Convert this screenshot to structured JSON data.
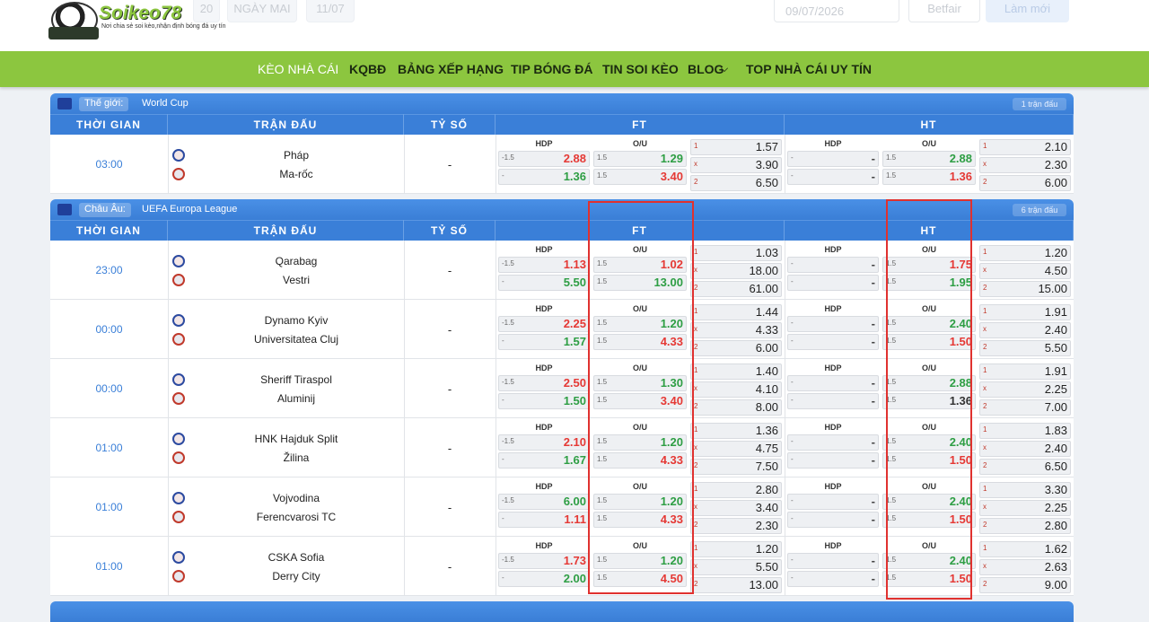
{
  "header": {
    "logo": "Soikeo78",
    "tagline": "Nơi chia sẻ soi kèo,nhận định bóng đá uy tín",
    "controls": {
      "today": "20",
      "tomorrow": "NGÀY MAI",
      "date_tab": "11/07",
      "date": "09/07/2026",
      "bookmaker": "Betfair",
      "refresh": "Làm mới"
    }
  },
  "nav": [
    "KÈO NHÀ CÁI",
    "KQBĐ",
    "BẢNG XẾP HẠNG",
    "TIP BÓNG ĐÁ",
    "TIN SOI KÈO",
    "BLOG",
    "TOP NHÀ CÁI UY TÍN"
  ],
  "columns": {
    "time": "THỜI GIAN",
    "match": "TRẬN ĐẤU",
    "score": "TỶ SỐ",
    "ft": "FT",
    "ht": "HT",
    "hdp": "HDP",
    "ou": "O/U"
  },
  "leagues": [
    {
      "region": "Thế giới:",
      "name": "World Cup",
      "count": "1 trận đấu",
      "matches": [
        {
          "time": "03:00",
          "home": "Pháp",
          "away": "Ma-rốc",
          "score": "-",
          "ft": {
            "hdp": {
              "lines": [
                "-1.5",
                "-"
              ],
              "odds": [
                "2.88",
                "1.36"
              ],
              "colors": [
                "#e53935",
                "#2e9e44"
              ]
            },
            "ou": {
              "lines": [
                "1.5",
                "1.5"
              ],
              "odds": [
                "1.29",
                "3.40"
              ],
              "colors": [
                "#2e9e44",
                "#e53935"
              ]
            },
            "x12": {
              "labels": [
                "1",
                "x",
                "2"
              ],
              "odds": [
                "1.57",
                "3.90",
                "6.50"
              ]
            }
          },
          "ht": {
            "hdp": {
              "lines": [
                "-",
                "-"
              ],
              "odds": [
                "-",
                "-"
              ],
              "colors": [
                "#444",
                "#444"
              ]
            },
            "ou": {
              "lines": [
                "1.5",
                "1.5"
              ],
              "odds": [
                "2.88",
                "1.36"
              ],
              "colors": [
                "#2e9e44",
                "#e53935"
              ]
            },
            "x12": {
              "labels": [
                "1",
                "x",
                "2"
              ],
              "odds": [
                "2.10",
                "2.30",
                "6.00"
              ]
            }
          }
        }
      ]
    },
    {
      "region": "Châu Âu:",
      "name": "UEFA Europa League",
      "count": "6 trận đấu",
      "matches": [
        {
          "time": "23:00",
          "home": "Qarabag",
          "away": "Vestri",
          "score": "-",
          "ft": {
            "hdp": {
              "lines": [
                "-1.5",
                "-"
              ],
              "odds": [
                "1.13",
                "5.50"
              ],
              "colors": [
                "#e53935",
                "#2e9e44"
              ]
            },
            "ou": {
              "lines": [
                "1.5",
                "1.5"
              ],
              "odds": [
                "1.02",
                "13.00"
              ],
              "colors": [
                "#e53935",
                "#2e9e44"
              ]
            },
            "x12": {
              "labels": [
                "1",
                "x",
                "2"
              ],
              "odds": [
                "1.03",
                "18.00",
                "61.00"
              ]
            }
          },
          "ht": {
            "hdp": {
              "lines": [
                "-",
                "-"
              ],
              "odds": [
                "-",
                "-"
              ],
              "colors": [
                "#444",
                "#444"
              ]
            },
            "ou": {
              "lines": [
                "1.5",
                "1.5"
              ],
              "odds": [
                "1.75",
                "1.95"
              ],
              "colors": [
                "#e53935",
                "#2e9e44"
              ]
            },
            "x12": {
              "labels": [
                "1",
                "x",
                "2"
              ],
              "odds": [
                "1.20",
                "4.50",
                "15.00"
              ]
            }
          }
        },
        {
          "time": "00:00",
          "home": "Dynamo Kyiv",
          "away": "Universitatea Cluj",
          "score": "-",
          "ft": {
            "hdp": {
              "lines": [
                "-1.5",
                "-"
              ],
              "odds": [
                "2.25",
                "1.57"
              ],
              "colors": [
                "#e53935",
                "#2e9e44"
              ]
            },
            "ou": {
              "lines": [
                "1.5",
                "1.5"
              ],
              "odds": [
                "1.20",
                "4.33"
              ],
              "colors": [
                "#2e9e44",
                "#e53935"
              ]
            },
            "x12": {
              "labels": [
                "1",
                "x",
                "2"
              ],
              "odds": [
                "1.44",
                "4.33",
                "6.00"
              ]
            }
          },
          "ht": {
            "hdp": {
              "lines": [
                "-",
                "-"
              ],
              "odds": [
                "-",
                "-"
              ],
              "colors": [
                "#444",
                "#444"
              ]
            },
            "ou": {
              "lines": [
                "1.5",
                "1.5"
              ],
              "odds": [
                "2.40",
                "1.50"
              ],
              "colors": [
                "#2e9e44",
                "#e53935"
              ]
            },
            "x12": {
              "labels": [
                "1",
                "x",
                "2"
              ],
              "odds": [
                "1.91",
                "2.40",
                "5.50"
              ]
            }
          }
        },
        {
          "time": "00:00",
          "home": "Sheriff Tiraspol",
          "away": "Aluminij",
          "score": "-",
          "ft": {
            "hdp": {
              "lines": [
                "-1.5",
                "-"
              ],
              "odds": [
                "2.50",
                "1.50"
              ],
              "colors": [
                "#e53935",
                "#2e9e44"
              ]
            },
            "ou": {
              "lines": [
                "1.5",
                "1.5"
              ],
              "odds": [
                "1.30",
                "3.40"
              ],
              "colors": [
                "#2e9e44",
                "#e53935"
              ]
            },
            "x12": {
              "labels": [
                "1",
                "x",
                "2"
              ],
              "odds": [
                "1.40",
                "4.10",
                "8.00"
              ]
            }
          },
          "ht": {
            "hdp": {
              "lines": [
                "-",
                "-"
              ],
              "odds": [
                "-",
                "-"
              ],
              "colors": [
                "#444",
                "#444"
              ]
            },
            "ou": {
              "lines": [
                "1.5",
                "1.5"
              ],
              "odds": [
                "2.88",
                "1.36"
              ],
              "colors": [
                "#2e9e44",
                "#333"
              ]
            },
            "x12": {
              "labels": [
                "1",
                "x",
                "2"
              ],
              "odds": [
                "1.91",
                "2.25",
                "7.00"
              ]
            }
          }
        },
        {
          "time": "01:00",
          "home": "HNK Hajduk Split",
          "away": "Žilina",
          "score": "-",
          "ft": {
            "hdp": {
              "lines": [
                "-1.5",
                "-"
              ],
              "odds": [
                "2.10",
                "1.67"
              ],
              "colors": [
                "#e53935",
                "#2e9e44"
              ]
            },
            "ou": {
              "lines": [
                "1.5",
                "1.5"
              ],
              "odds": [
                "1.20",
                "4.33"
              ],
              "colors": [
                "#2e9e44",
                "#e53935"
              ]
            },
            "x12": {
              "labels": [
                "1",
                "x",
                "2"
              ],
              "odds": [
                "1.36",
                "4.75",
                "7.50"
              ]
            }
          },
          "ht": {
            "hdp": {
              "lines": [
                "-",
                "-"
              ],
              "odds": [
                "-",
                "-"
              ],
              "colors": [
                "#444",
                "#444"
              ]
            },
            "ou": {
              "lines": [
                "1.5",
                "1.5"
              ],
              "odds": [
                "2.40",
                "1.50"
              ],
              "colors": [
                "#2e9e44",
                "#e53935"
              ]
            },
            "x12": {
              "labels": [
                "1",
                "x",
                "2"
              ],
              "odds": [
                "1.83",
                "2.40",
                "6.50"
              ]
            }
          }
        },
        {
          "time": "01:00",
          "home": "Vojvodina",
          "away": "Ferencvarosi TC",
          "score": "-",
          "ft": {
            "hdp": {
              "lines": [
                "-1.5",
                "-"
              ],
              "odds": [
                "6.00",
                "1.11"
              ],
              "colors": [
                "#2e9e44",
                "#e53935"
              ]
            },
            "ou": {
              "lines": [
                "1.5",
                "1.5"
              ],
              "odds": [
                "1.20",
                "4.33"
              ],
              "colors": [
                "#2e9e44",
                "#e53935"
              ]
            },
            "x12": {
              "labels": [
                "1",
                "x",
                "2"
              ],
              "odds": [
                "2.80",
                "3.40",
                "2.30"
              ]
            }
          },
          "ht": {
            "hdp": {
              "lines": [
                "-",
                "-"
              ],
              "odds": [
                "-",
                "-"
              ],
              "colors": [
                "#444",
                "#444"
              ]
            },
            "ou": {
              "lines": [
                "1.5",
                "1.5"
              ],
              "odds": [
                "2.40",
                "1.50"
              ],
              "colors": [
                "#2e9e44",
                "#e53935"
              ]
            },
            "x12": {
              "labels": [
                "1",
                "x",
                "2"
              ],
              "odds": [
                "3.30",
                "2.25",
                "2.80"
              ]
            }
          }
        },
        {
          "time": "01:00",
          "home": "CSKA Sofia",
          "away": "Derry City",
          "score": "-",
          "ft": {
            "hdp": {
              "lines": [
                "-1.5",
                "-"
              ],
              "odds": [
                "1.73",
                "2.00"
              ],
              "colors": [
                "#e53935",
                "#2e9e44"
              ]
            },
            "ou": {
              "lines": [
                "1.5",
                "1.5"
              ],
              "odds": [
                "1.20",
                "4.50"
              ],
              "colors": [
                "#2e9e44",
                "#e53935"
              ]
            },
            "x12": {
              "labels": [
                "1",
                "x",
                "2"
              ],
              "odds": [
                "1.20",
                "5.50",
                "13.00"
              ]
            }
          },
          "ht": {
            "hdp": {
              "lines": [
                "-",
                "-"
              ],
              "odds": [
                "-",
                "-"
              ],
              "colors": [
                "#444",
                "#444"
              ]
            },
            "ou": {
              "lines": [
                "1.5",
                "1.5"
              ],
              "odds": [
                "2.40",
                "1.50"
              ],
              "colors": [
                "#2e9e44",
                "#e53935"
              ]
            },
            "x12": {
              "labels": [
                "1",
                "x",
                "2"
              ],
              "odds": [
                "1.62",
                "2.63",
                "9.00"
              ]
            }
          }
        }
      ]
    }
  ]
}
